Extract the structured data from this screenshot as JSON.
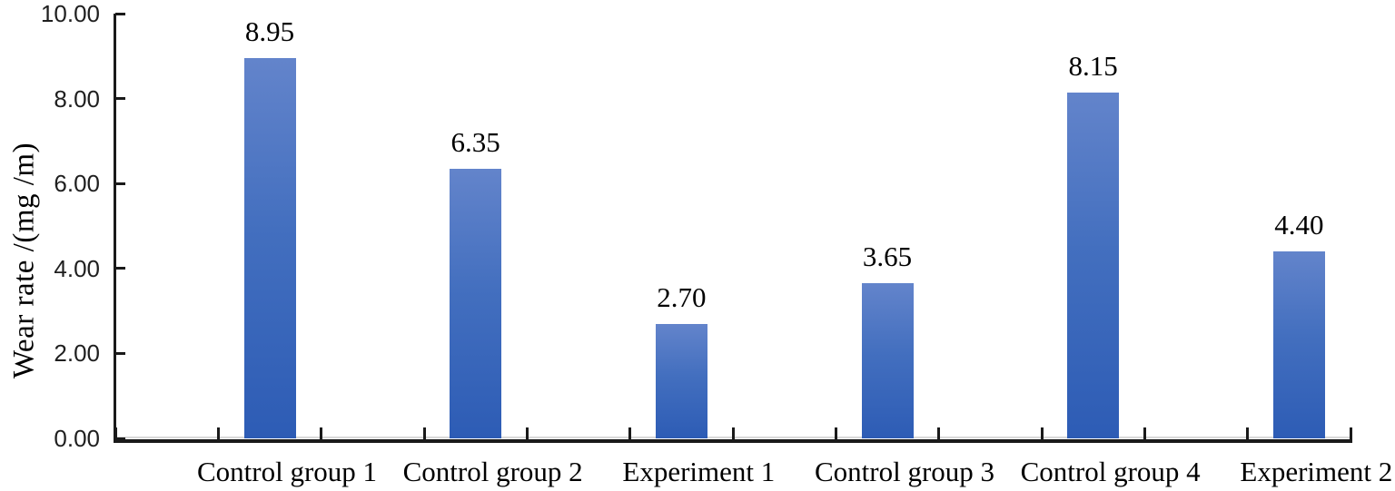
{
  "chart_data": {
    "type": "bar",
    "title": "",
    "categories": [
      "Control group 1",
      "Control group 2",
      "Experiment 1",
      "Control group 3",
      "Control group 4",
      "Experiment 2"
    ],
    "values": [
      8.95,
      6.35,
      2.7,
      3.65,
      8.15,
      4.4
    ],
    "data_labels": [
      "8.95",
      "6.35",
      "2.70",
      "3.65",
      "8.15",
      "4.40"
    ],
    "xlabel": "",
    "ylabel": "Wear rate /(mg /m)",
    "ylim": [
      0,
      10
    ],
    "ytick_step": 2,
    "ytick_labels_top_to_bottom": [
      "10.00",
      "8.00",
      "6.00",
      "4.00",
      "2.00",
      "0.00"
    ],
    "grid": false,
    "legend": "none",
    "bar_color_top": "#6384cb",
    "bar_color_bottom": "#2d5cb5",
    "axis_color": "#1a1a1a",
    "zero_line_gray": "#d9d9d9",
    "tick_direction": "inside"
  }
}
